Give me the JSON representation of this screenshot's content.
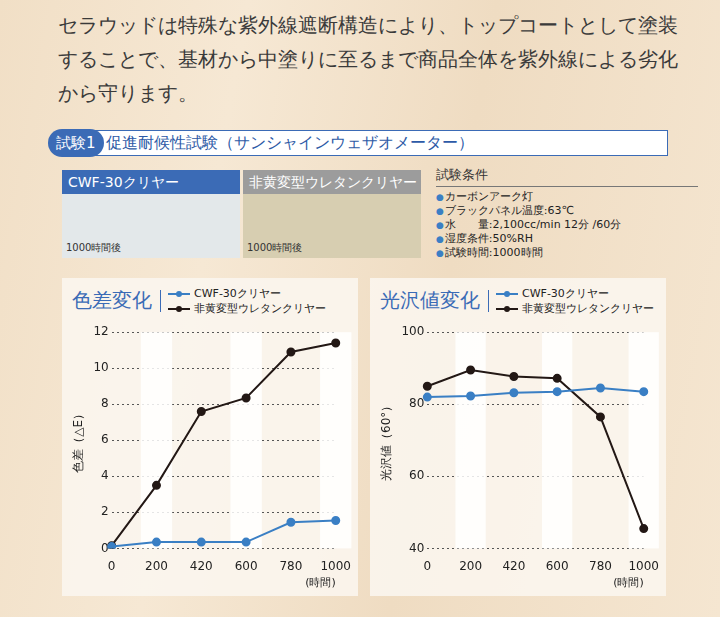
{
  "header": {
    "text": "セラウッドは特殊な紫外線遮断構造により、トップコートとして塗装することで、基材から中塗りに至るまで商品全体を紫外線による劣化から守ります。"
  },
  "test": {
    "badge": "試験1",
    "title": "促進耐候性試験（サンシャインウェザオメーター）"
  },
  "swatches": [
    {
      "label": "CWF-30クリヤー",
      "caption": "1000時間後",
      "color": "#e3e8ea"
    },
    {
      "label": "非黄変型ウレタンクリヤー",
      "caption": "1000時間後",
      "color": "#d7ceb1"
    }
  ],
  "conditions": {
    "title": "試験条件",
    "items": [
      "カーボンアーク灯",
      "ブラックパネル温度:63℃",
      "水　　量:2,100cc/min 12分 /60分",
      "湿度条件:50%RH",
      "試験時間:1000時間"
    ]
  },
  "chart_data": [
    {
      "type": "line",
      "title": "色差変化",
      "xlabel": "(時間)",
      "ylabel": "色差（△E）",
      "categories": [
        0,
        200,
        420,
        600,
        780,
        1000
      ],
      "series": [
        {
          "name": "CWF-30クリヤー",
          "color": "#3a7fc4",
          "marker": "circle",
          "line_style": "solid",
          "values": [
            0.1,
            0.35,
            0.35,
            0.35,
            1.45,
            1.55
          ]
        },
        {
          "name": "非黄変型ウレタンクリヤー",
          "color": "#231815",
          "marker": "circle",
          "line_style": "solid",
          "values": [
            0.15,
            3.5,
            7.6,
            8.35,
            10.9,
            11.4
          ]
        }
      ],
      "ylim": [
        0,
        12
      ],
      "yticks": [
        0,
        2,
        4,
        6,
        8,
        10,
        12
      ],
      "grid": true,
      "legend": "top"
    },
    {
      "type": "line",
      "title": "光沢値変化",
      "xlabel": "(時間)",
      "ylabel": "光沢値（60°）",
      "categories": [
        0,
        200,
        420,
        600,
        780,
        1000
      ],
      "series": [
        {
          "name": "CWF-30クリヤー",
          "color": "#3a7fc4",
          "marker": "circle",
          "line_style": "solid",
          "values": [
            82,
            82.3,
            83.2,
            83.5,
            84.5,
            83.5
          ]
        },
        {
          "name": "非黄変型ウレタンクリヤー",
          "color": "#231815",
          "marker": "circle",
          "line_style": "solid",
          "values": [
            85,
            89.5,
            87.7,
            87.2,
            76.5,
            45.5
          ]
        }
      ],
      "ylim": [
        40,
        100
      ],
      "yticks": [
        40,
        60,
        80,
        100
      ],
      "grid": true,
      "legend": "top"
    }
  ]
}
